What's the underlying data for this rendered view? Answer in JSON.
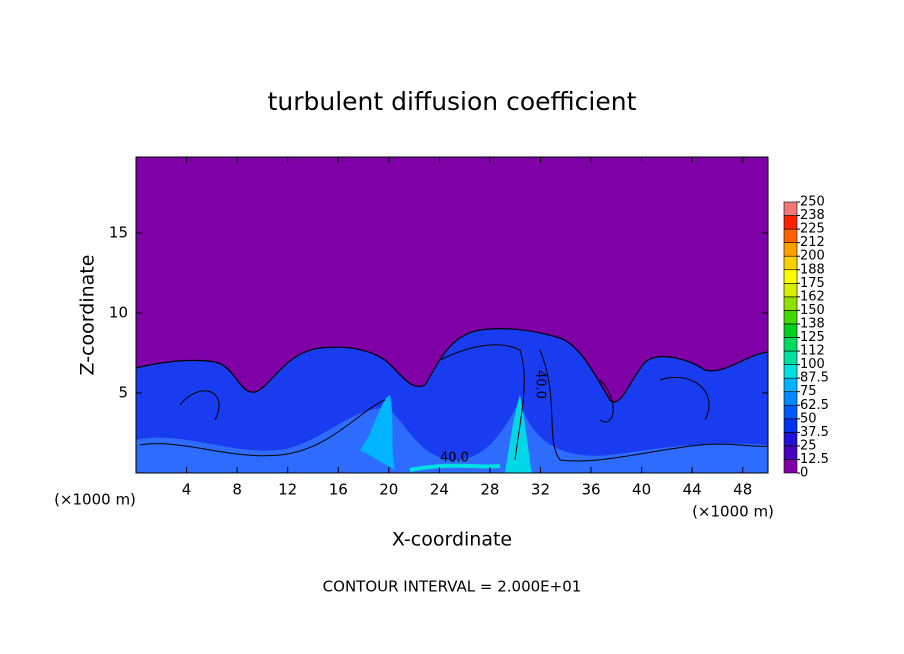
{
  "chart_data": {
    "type": "contour",
    "title": "turbulent diffusion coefficient",
    "x_label": "X-coordinate",
    "y_label": "Z-coordinate",
    "x_unit": "(×1000 m)",
    "y_unit": "(×1000 m)",
    "footer": "CONTOUR INTERVAL = 2.000E+01",
    "contour_labels": [
      "40.0",
      "40.0"
    ],
    "xlim": [
      0,
      50
    ],
    "xticks": [
      4,
      8,
      12,
      16,
      20,
      24,
      28,
      32,
      36,
      40,
      44,
      48
    ],
    "ylim": [
      0,
      19.75
    ],
    "yticks": [
      5,
      10,
      15
    ],
    "colorbar": {
      "lim": [
        0,
        250
      ],
      "ticks": [
        0,
        12.5,
        25,
        37.5,
        50,
        62.5,
        75,
        87.5,
        100,
        {
          "value": 112.5,
          "label": "112"
        },
        125,
        {
          "value": 137.5,
          "label": "138"
        },
        150,
        {
          "value": 162.5,
          "label": "162"
        },
        175,
        {
          "value": 187.5,
          "label": "188"
        },
        200,
        {
          "value": 212.5,
          "label": "212"
        },
        225,
        {
          "value": 237.5,
          "label": "238"
        },
        250
      ],
      "colors": [
        "#8000a8",
        "#4800c0",
        "#2010d8",
        "#0030f0",
        "#0058ff",
        "#0088ff",
        "#00b4ff",
        "#00e0e0",
        "#00e0a0",
        "#00dc60",
        "#00d020",
        "#40d800",
        "#90e000",
        "#d8f000",
        "#ffff00",
        "#ffd000",
        "#ffa000",
        "#ff6000",
        "#ff2000",
        "#f07878"
      ]
    }
  }
}
